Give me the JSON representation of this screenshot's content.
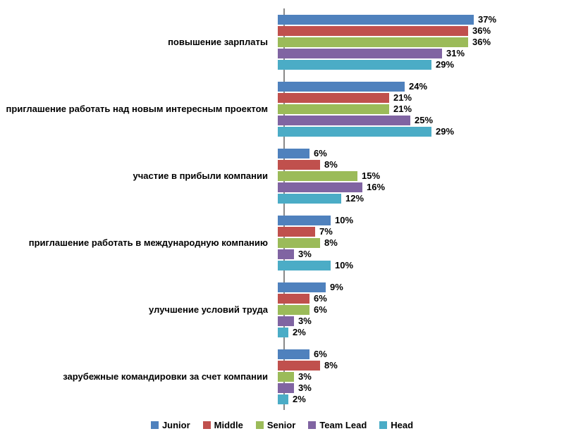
{
  "chart_data": {
    "type": "bar",
    "orientation": "horizontal",
    "title": "",
    "xlabel": "",
    "ylabel": "",
    "grid": false,
    "legend_position": "bottom",
    "value_suffix": "%",
    "xlim": [
      0,
      40
    ],
    "categories": [
      "повышение зарплаты",
      "приглашение работать над новым интересным проектом",
      "участие в прибыли компании",
      "приглашение работать в международную компанию",
      "улучшение условий труда",
      "зарубежные командировки за счет компании"
    ],
    "series": [
      {
        "name": "Junior",
        "color": "#4F81BD",
        "values": [
          37,
          24,
          6,
          10,
          9,
          6
        ]
      },
      {
        "name": "Middle",
        "color": "#C0504D",
        "values": [
          36,
          21,
          8,
          7,
          6,
          8
        ]
      },
      {
        "name": "Senior",
        "color": "#9BBB59",
        "values": [
          36,
          21,
          15,
          8,
          6,
          3
        ]
      },
      {
        "name": "Team Lead",
        "color": "#8064A2",
        "values": [
          31,
          25,
          16,
          3,
          3,
          3
        ]
      },
      {
        "name": "Head",
        "color": "#4BACC6",
        "values": [
          29,
          29,
          12,
          10,
          2,
          2
        ]
      }
    ],
    "colors": {
      "axis_line": "#898989",
      "background": "#ffffff",
      "text": "#000000"
    }
  }
}
